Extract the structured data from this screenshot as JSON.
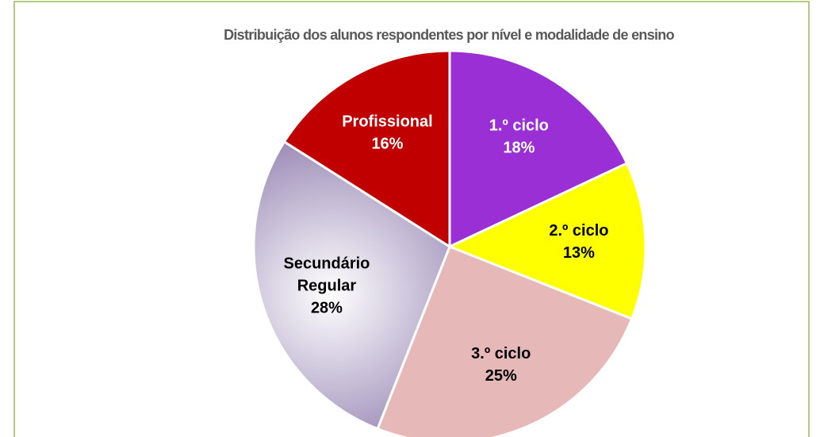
{
  "chart_data": {
    "type": "pie",
    "title": "Distribuição dos alunos respondentes por nível e modalidade de ensino",
    "categories": [
      "1.º ciclo",
      "2.º ciclo",
      "3.º ciclo",
      "Secundário Regular",
      "Profissional"
    ],
    "values": [
      18,
      13,
      25,
      28,
      16
    ],
    "value_labels": [
      "18%",
      "13%",
      "25%",
      "28%",
      "16%"
    ],
    "colors": [
      "#9b2fd6",
      "#ffff00",
      "#e6b9b8",
      "#9d8db8",
      "#c00000"
    ],
    "gradient_inner_colors": [
      null,
      null,
      null,
      "#ffffff",
      null
    ],
    "label_colors": [
      "#ffffff",
      "#000000",
      "#000000",
      "#000000",
      "#ffffff"
    ]
  }
}
